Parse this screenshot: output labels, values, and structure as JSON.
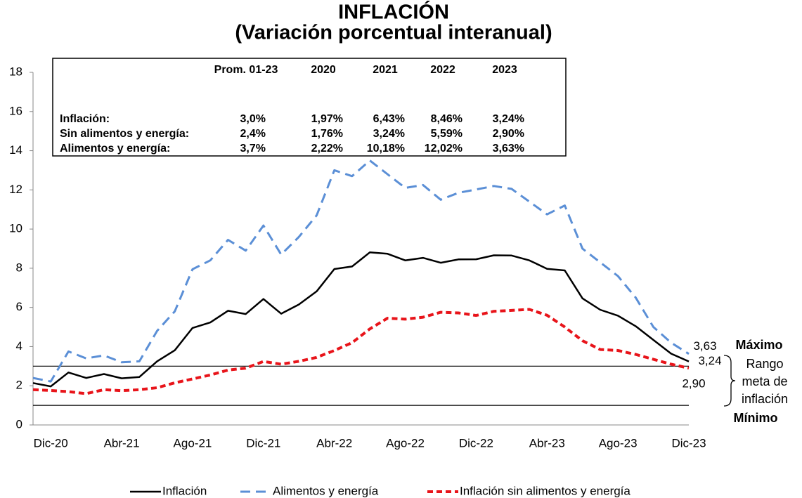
{
  "chart_data": {
    "type": "line",
    "title": "INFLACIÓN",
    "subtitle": "(Variación porcentual interanual)",
    "categories": [
      null,
      "Dic-20",
      null,
      null,
      null,
      "Abr-21",
      null,
      null,
      null,
      "Ago-21",
      null,
      null,
      null,
      "Dic-21",
      null,
      null,
      null,
      "Abr-22",
      null,
      null,
      null,
      "Ago-22",
      null,
      null,
      null,
      "Dic-22",
      null,
      null,
      null,
      "Abr-23",
      null,
      null,
      null,
      "Ago-23",
      null,
      null,
      null,
      "Dic-23"
    ],
    "series": [
      {
        "name": "Inflación",
        "color": "#000000",
        "dash": "solid",
        "values": [
          2.14,
          1.97,
          2.68,
          2.4,
          2.6,
          2.38,
          2.45,
          3.25,
          3.81,
          4.95,
          5.23,
          5.83,
          5.66,
          6.43,
          5.68,
          6.15,
          6.82,
          7.96,
          8.09,
          8.81,
          8.74,
          8.4,
          8.53,
          8.28,
          8.45,
          8.46,
          8.66,
          8.65,
          8.4,
          7.97,
          7.89,
          6.46,
          5.88,
          5.58,
          5.04,
          4.34,
          3.64,
          3.24
        ],
        "value_labels": [
          null,
          null,
          null,
          null,
          null,
          null,
          null,
          null,
          null,
          null,
          null,
          null,
          null,
          null,
          null,
          null,
          null,
          null,
          null,
          null,
          null,
          null,
          null,
          null,
          null,
          null,
          null,
          null,
          null,
          null,
          null,
          null,
          null,
          null,
          null,
          null,
          null,
          "3,24"
        ]
      },
      {
        "name": "Alimentos y energía",
        "color": "#5b8fd6",
        "dash": "long",
        "values": [
          2.4,
          2.22,
          3.75,
          3.4,
          3.55,
          3.2,
          3.25,
          4.8,
          5.8,
          7.95,
          8.4,
          9.45,
          8.9,
          10.18,
          8.7,
          9.6,
          10.7,
          13.0,
          12.7,
          13.5,
          12.8,
          12.1,
          12.25,
          11.5,
          11.85,
          12.02,
          12.2,
          12.05,
          11.4,
          10.75,
          11.2,
          9.0,
          8.3,
          7.6,
          6.5,
          5.0,
          4.2,
          3.63
        ],
        "value_labels": [
          null,
          null,
          null,
          null,
          null,
          null,
          null,
          null,
          null,
          null,
          null,
          null,
          null,
          null,
          null,
          null,
          null,
          null,
          null,
          null,
          null,
          null,
          null,
          null,
          null,
          null,
          null,
          null,
          null,
          null,
          null,
          null,
          null,
          null,
          null,
          null,
          null,
          "3,63"
        ]
      },
      {
        "name": "Inflación sin alimentos y energía",
        "color": "#e8141a",
        "dash": "short",
        "values": [
          1.8,
          1.76,
          1.7,
          1.6,
          1.8,
          1.75,
          1.8,
          1.9,
          2.15,
          2.35,
          2.55,
          2.8,
          2.9,
          3.24,
          3.1,
          3.25,
          3.45,
          3.8,
          4.2,
          4.9,
          5.45,
          5.4,
          5.5,
          5.75,
          5.72,
          5.59,
          5.8,
          5.85,
          5.9,
          5.6,
          5.0,
          4.3,
          3.85,
          3.8,
          3.6,
          3.35,
          3.1,
          2.9
        ],
        "value_labels": [
          null,
          null,
          null,
          null,
          null,
          null,
          null,
          null,
          null,
          null,
          null,
          null,
          null,
          null,
          null,
          null,
          null,
          null,
          null,
          null,
          null,
          null,
          null,
          null,
          null,
          null,
          null,
          null,
          null,
          null,
          null,
          null,
          null,
          null,
          null,
          null,
          null,
          "2,90"
        ]
      }
    ],
    "ylim": [
      0,
      18
    ],
    "yticks": [
      0,
      2,
      4,
      6,
      8,
      10,
      12,
      14,
      16,
      18
    ],
    "reference_lines": [
      3,
      1
    ],
    "annotations": {
      "max": "Máximo",
      "range": [
        "Rango",
        "meta de",
        "inflación"
      ],
      "min": "Mínimo"
    },
    "legend": "bottom",
    "table": {
      "header": [
        "Prom. 01-23",
        "2020",
        "2021",
        "2022",
        "2023"
      ],
      "rows": [
        [
          "Inflación:",
          "3,0%",
          "1,97%",
          "6,43%",
          "8,46%",
          "3,24%"
        ],
        [
          "Sin alimentos y energía:",
          "2,4%",
          "1,76%",
          "3,24%",
          "5,59%",
          "2,90%"
        ],
        [
          "Alimentos y energía:",
          "3,7%",
          "2,22%",
          "10,18%",
          "12,02%",
          "3,63%"
        ]
      ]
    }
  }
}
